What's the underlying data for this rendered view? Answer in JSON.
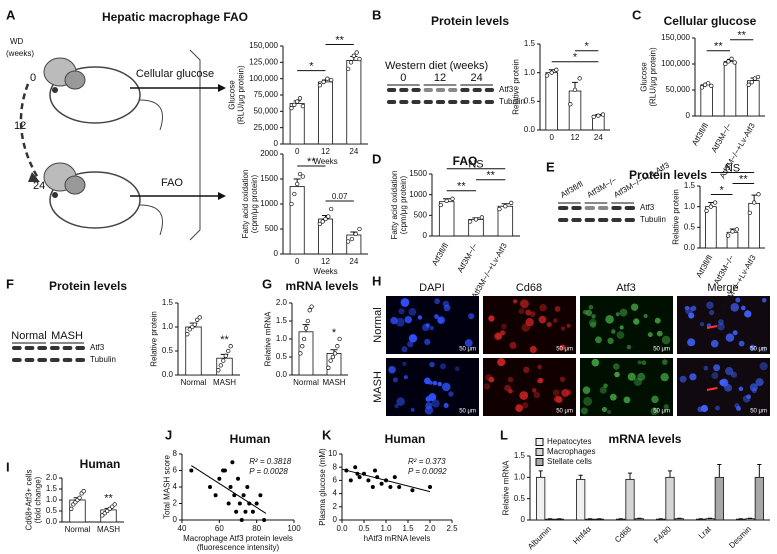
{
  "panels": [
    {
      "letter": "A",
      "title": "Hepatic macrophage FAO"
    },
    {
      "letter": "B",
      "title": "Protein levels"
    },
    {
      "letter": "C",
      "title": "Cellular glucose"
    },
    {
      "letter": "D",
      "title": "FAO"
    },
    {
      "letter": "E",
      "title": "Protein levels"
    },
    {
      "letter": "F",
      "title": "Protein levels"
    },
    {
      "letter": "G",
      "title": "mRNA levels"
    },
    {
      "letter": "H"
    },
    {
      "letter": "I",
      "title": "Human"
    },
    {
      "letter": "J",
      "title": "Human"
    },
    {
      "letter": "K",
      "title": "Human"
    },
    {
      "letter": "L",
      "title": "mRNA levels"
    }
  ],
  "schematic": {
    "wd": "WD",
    "weeks": "(weeks)",
    "timepoints": [
      "0",
      "12",
      "24"
    ],
    "arrows": [
      "Cellular glucose",
      "FAO"
    ]
  },
  "blots": [
    {
      "header": "Western diet (weeks)",
      "lanes": [
        "0",
        "12",
        "24"
      ],
      "bands": [
        "Atf3",
        "Tubulin"
      ]
    },
    {
      "lanes": [
        "Atf3fl/fl",
        "Atf3M−/−",
        "Atf3M−/−+Lv-Atf3"
      ],
      "bands": [
        "Atf3",
        "Tubulin"
      ]
    },
    {
      "lanes": [
        "Normal",
        "MASH"
      ],
      "bands": [
        "Atf3",
        "Tubulin"
      ]
    }
  ],
  "micrograph": {
    "columns": [
      "DAPI",
      "Cd68",
      "Atf3",
      "Merge"
    ],
    "rows": [
      "Normal",
      "MASH"
    ],
    "scale_bar": "50 μm"
  },
  "chart_data": [
    {
      "type": "bar",
      "y_label": [
        "Glucose",
        "(RLU/μg protein)"
      ],
      "x_label": "Weeks",
      "categories": [
        "0",
        "12",
        "24"
      ],
      "values": [
        62000,
        95000,
        128000
      ],
      "errors": [
        4000,
        3000,
        6000
      ],
      "points": [
        [
          55000,
          60000,
          65000,
          70000,
          58000
        ],
        [
          90000,
          95000,
          100000,
          98000
        ],
        [
          115000,
          125000,
          135000,
          140000,
          130000
        ]
      ],
      "color": "#ffffff",
      "ylim": [
        0,
        150000
      ],
      "yticks": [
        0,
        {
          "value": 25000,
          "label": "25,000"
        },
        {
          "value": 50000,
          "label": "50,000"
        },
        {
          "value": 75000,
          "label": "75,000"
        },
        {
          "value": 100000,
          "label": "100,000"
        },
        {
          "value": 125000,
          "label": "125,000"
        },
        {
          "value": 150000,
          "label": "150,000"
        }
      ],
      "annotations": [
        {
          "label": "*",
          "pair": [
            0,
            1
          ]
        },
        {
          "label": "**",
          "pair": [
            1,
            2
          ]
        }
      ]
    },
    {
      "type": "bar",
      "y_label": [
        "Fatty acid oxidation",
        "(cpm/μg protein)"
      ],
      "x_label": "Weeks",
      "categories": [
        "0",
        "12",
        "24"
      ],
      "values": [
        1350,
        700,
        380
      ],
      "errors": [
        150,
        70,
        60
      ],
      "points": [
        [
          1000,
          1200,
          1400,
          1600,
          1550
        ],
        [
          600,
          650,
          700,
          750,
          900
        ],
        [
          250,
          300,
          400,
          500
        ]
      ],
      "color": "#ffffff",
      "ylim": [
        0,
        2000
      ],
      "yticks": [
        0,
        500,
        1000,
        1500,
        2000
      ],
      "annotations": [
        {
          "label": "**",
          "pair": [
            0,
            1
          ]
        },
        {
          "label": "0.07",
          "pair": [
            1,
            2
          ]
        }
      ]
    },
    {
      "type": "bar",
      "y_label": [
        "Relative protein"
      ],
      "categories": [
        "0",
        "12",
        "24"
      ],
      "values": [
        1.0,
        0.68,
        0.25
      ],
      "errors": [
        0.05,
        0.15,
        0.02
      ],
      "points": [
        [
          0.95,
          1.0,
          1.05
        ],
        [
          0.45,
          0.7,
          0.9
        ],
        [
          0.23,
          0.25,
          0.27
        ]
      ],
      "color": "#ffffff",
      "ylim": [
        0,
        1.5
      ],
      "yticks": [
        {
          "value": 0,
          "label": "0.0"
        },
        0.5,
        {
          "value": 1,
          "label": "1.0"
        },
        1.5
      ],
      "annotations": [
        {
          "label": "*",
          "pair": [
            0,
            2
          ]
        },
        {
          "label": "*",
          "pair": [
            1,
            2
          ]
        }
      ]
    },
    {
      "type": "bar",
      "y_label": [
        "Glucose",
        "(RLU/μg protein)"
      ],
      "categories": [
        "Atf3fl/fl",
        "Atf3M−/−",
        "Atf3M−/−+Lv-Atf3"
      ],
      "values": [
        60000,
        105000,
        68000
      ],
      "errors": [
        3000,
        4000,
        5000
      ],
      "points": [
        [
          55000,
          60000,
          63000,
          58000
        ],
        [
          100000,
          105000,
          110000,
          103000
        ],
        [
          60000,
          65000,
          72000,
          75000
        ]
      ],
      "color": "#ffffff",
      "ylim": [
        0,
        150000
      ],
      "yticks": [
        0,
        {
          "value": 50000,
          "label": "50,000"
        },
        {
          "value": 100000,
          "label": "100,000"
        },
        {
          "value": 150000,
          "label": "150,000"
        }
      ],
      "annotations": [
        {
          "label": "**",
          "pair": [
            0,
            1
          ]
        },
        {
          "label": "**",
          "pair": [
            1,
            2
          ]
        }
      ]
    },
    {
      "type": "bar",
      "y_label": [
        "Fatty acid oxidation",
        "(cpm/μg protein)"
      ],
      "categories": [
        "Atf3fl/fl",
        "Atf3M−/−",
        "Atf3M−/−+Lv-Atf3"
      ],
      "values": [
        830,
        400,
        720
      ],
      "errors": [
        70,
        40,
        60
      ],
      "points": [
        [
          750,
          850,
          900
        ],
        [
          350,
          400,
          450
        ],
        [
          650,
          720,
          800
        ]
      ],
      "color": "#ffffff",
      "ylim": [
        0,
        1500
      ],
      "yticks": [
        0,
        500,
        1000,
        1500
      ],
      "annotations": [
        {
          "label": "**",
          "pair": [
            0,
            1
          ]
        },
        {
          "label": "**",
          "pair": [
            1,
            2
          ]
        },
        {
          "label": "NS",
          "pair": [
            0,
            2
          ]
        }
      ]
    },
    {
      "type": "bar",
      "y_label": [
        "Relative protein"
      ],
      "categories": [
        "Atf3fl/fl",
        "Atf3M−/−",
        "Atf3M−/−+Lv-Atf3"
      ],
      "values": [
        1.0,
        0.38,
        1.08
      ],
      "errors": [
        0.1,
        0.08,
        0.2
      ],
      "points": [
        [
          0.9,
          1.0,
          1.1
        ],
        [
          0.3,
          0.4,
          0.45
        ],
        [
          0.85,
          1.1,
          1.3
        ]
      ],
      "color": "#ffffff",
      "ylim": [
        0,
        1.5
      ],
      "yticks": [
        {
          "value": 0,
          "label": "0.0"
        },
        0.5,
        {
          "value": 1,
          "label": "1.0"
        },
        1.5
      ],
      "annotations": [
        {
          "label": "*",
          "pair": [
            0,
            1
          ]
        },
        {
          "label": "**",
          "pair": [
            1,
            2
          ]
        },
        {
          "label": "NS",
          "pair": [
            0,
            2
          ]
        }
      ]
    },
    {
      "type": "bar",
      "y_label": [
        "Relative protein"
      ],
      "categories": [
        "Normal",
        "MASH"
      ],
      "values": [
        1.0,
        0.35
      ],
      "errors": [
        0.08,
        0.08
      ],
      "points": [
        [
          0.85,
          0.95,
          1.0,
          1.05,
          1.15,
          1.2
        ],
        [
          0.1,
          0.2,
          0.3,
          0.4,
          0.5,
          0.6
        ]
      ],
      "color": "#ffffff",
      "ylim": [
        0,
        1.5
      ],
      "yticks": [
        {
          "value": 0,
          "label": "0.0"
        },
        0.5,
        {
          "value": 1,
          "label": "1.0"
        },
        1.5
      ],
      "annotations": [
        {
          "label": "**",
          "pair": [
            1
          ]
        }
      ]
    },
    {
      "type": "bar",
      "y_label": [
        "Relative mRNA"
      ],
      "categories": [
        "Normal",
        "MASH"
      ],
      "values": [
        1.2,
        0.6
      ],
      "errors": [
        0.2,
        0.1
      ],
      "points": [
        [
          0.6,
          0.8,
          1.0,
          1.3,
          1.5,
          1.8,
          1.9
        ],
        [
          0.2,
          0.4,
          0.5,
          0.6,
          0.8,
          1.0
        ]
      ],
      "color": "#ffffff",
      "ylim": [
        0,
        2
      ],
      "yticks": [
        {
          "value": 0,
          "label": "0.0"
        },
        0.5,
        {
          "value": 1,
          "label": "1.0"
        },
        1.5,
        {
          "value": 2,
          "label": "2.0"
        }
      ],
      "annotations": [
        {
          "label": "*",
          "pair": [
            1
          ]
        }
      ]
    },
    {
      "type": "bar",
      "y_label": [
        "Cd68+Atf3+ cells",
        "(fold change)"
      ],
      "categories": [
        "Normal",
        "MASH"
      ],
      "values": [
        1.0,
        0.55
      ],
      "errors": [
        0.1,
        0.07
      ],
      "points": [
        [
          0.6,
          0.8,
          0.9,
          1.0,
          1.1,
          1.3,
          1.4
        ],
        [
          0.3,
          0.4,
          0.5,
          0.6,
          0.7,
          0.8
        ]
      ],
      "color": "#ffffff",
      "ylim": [
        0,
        2
      ],
      "yticks": [
        {
          "value": 0,
          "label": "0.0"
        },
        0.5,
        {
          "value": 1,
          "label": "1.0"
        },
        1.5,
        {
          "value": 2,
          "label": "2.0"
        }
      ],
      "annotations": [
        {
          "label": "**",
          "pair": [
            1
          ]
        }
      ]
    },
    {
      "type": "scatter",
      "y_label": [
        "Total MASH score"
      ],
      "x_label": [
        "Macrophage Atf3 protein levels",
        "(fluorescence intensity)"
      ],
      "x": [
        45,
        55,
        58,
        60,
        62,
        63,
        65,
        66,
        67,
        68,
        69,
        70,
        71,
        72,
        73,
        74,
        75,
        76,
        78,
        80,
        82,
        84
      ],
      "values": [
        6,
        4,
        3,
        5,
        6,
        6,
        2,
        4,
        7,
        3,
        1,
        5,
        2,
        0,
        3,
        1,
        4,
        2,
        1,
        2,
        3,
        0
      ],
      "fit_x": [
        45,
        85
      ],
      "fit_y": [
        6.6,
        0.8
      ],
      "stats": [
        "R² = 0.3818",
        "P = 0.0028"
      ],
      "color": "#000000",
      "xlim": [
        40,
        100
      ],
      "xticks": [
        40,
        60,
        80,
        100
      ],
      "ylim": [
        0,
        8
      ],
      "yticks": [
        0,
        2,
        4,
        6,
        8
      ]
    },
    {
      "type": "scatter",
      "y_label": [
        "Plasma glucose (mM)"
      ],
      "x_label": [
        "hAtf3 mRNA levels"
      ],
      "x": [
        0.1,
        0.2,
        0.3,
        0.35,
        0.4,
        0.5,
        0.6,
        0.7,
        0.75,
        0.8,
        0.9,
        1.0,
        1.1,
        1.2,
        1.3,
        1.6,
        2.0
      ],
      "values": [
        7.5,
        6,
        8,
        7,
        6.5,
        7,
        6,
        5,
        7.5,
        6.5,
        5.5,
        6,
        5,
        6.5,
        5,
        4.5,
        5
      ],
      "fit_x": [
        0,
        2
      ],
      "fit_y": [
        7.7,
        4.3
      ],
      "stats": [
        "R² = 0.373",
        "P = 0.0092"
      ],
      "color": "#000000",
      "xlim": [
        0,
        2.5
      ],
      "xticks": [
        {
          "value": 0,
          "label": "0.0"
        },
        0.5,
        {
          "value": 1,
          "label": "1.0"
        },
        1.5,
        {
          "value": 2,
          "label": "2.0"
        },
        2.5
      ],
      "ylim": [
        0,
        10
      ],
      "yticks": [
        0,
        2,
        4,
        6,
        8,
        10
      ]
    },
    {
      "type": "grouped_bar",
      "y_label": [
        "Relative mRNA"
      ],
      "categories": [
        "Albumin",
        "Hnf4α",
        "Cd68",
        "F4/80",
        "Lrat",
        "Desmin"
      ],
      "legend": "upper left",
      "series": [
        {
          "name": "Hepatocytes",
          "color": "#f0f0f0",
          "values": [
            1.0,
            0.95,
            0.02,
            0.02,
            0.02,
            0.02
          ],
          "errors": [
            0.15,
            0.1,
            0.01,
            0.01,
            0.01,
            0.01
          ]
        },
        {
          "name": "Macrophages",
          "color": "#d4d4d4",
          "values": [
            0.02,
            0.02,
            0.95,
            1.0,
            0.03,
            0.03
          ],
          "errors": [
            0.01,
            0.01,
            0.15,
            0.15,
            0.01,
            0.01
          ]
        },
        {
          "name": "Stellate cells",
          "color": "#a8a8a8",
          "values": [
            0.02,
            0.02,
            0.03,
            0.03,
            1.0,
            1.0
          ],
          "errors": [
            0.01,
            0.01,
            0.01,
            0.01,
            0.3,
            0.3
          ]
        }
      ],
      "ylim": [
        0,
        1.5
      ],
      "yticks": [
        0,
        0.5,
        {
          "value": 1,
          "label": "1.0"
        },
        1.5
      ]
    }
  ]
}
